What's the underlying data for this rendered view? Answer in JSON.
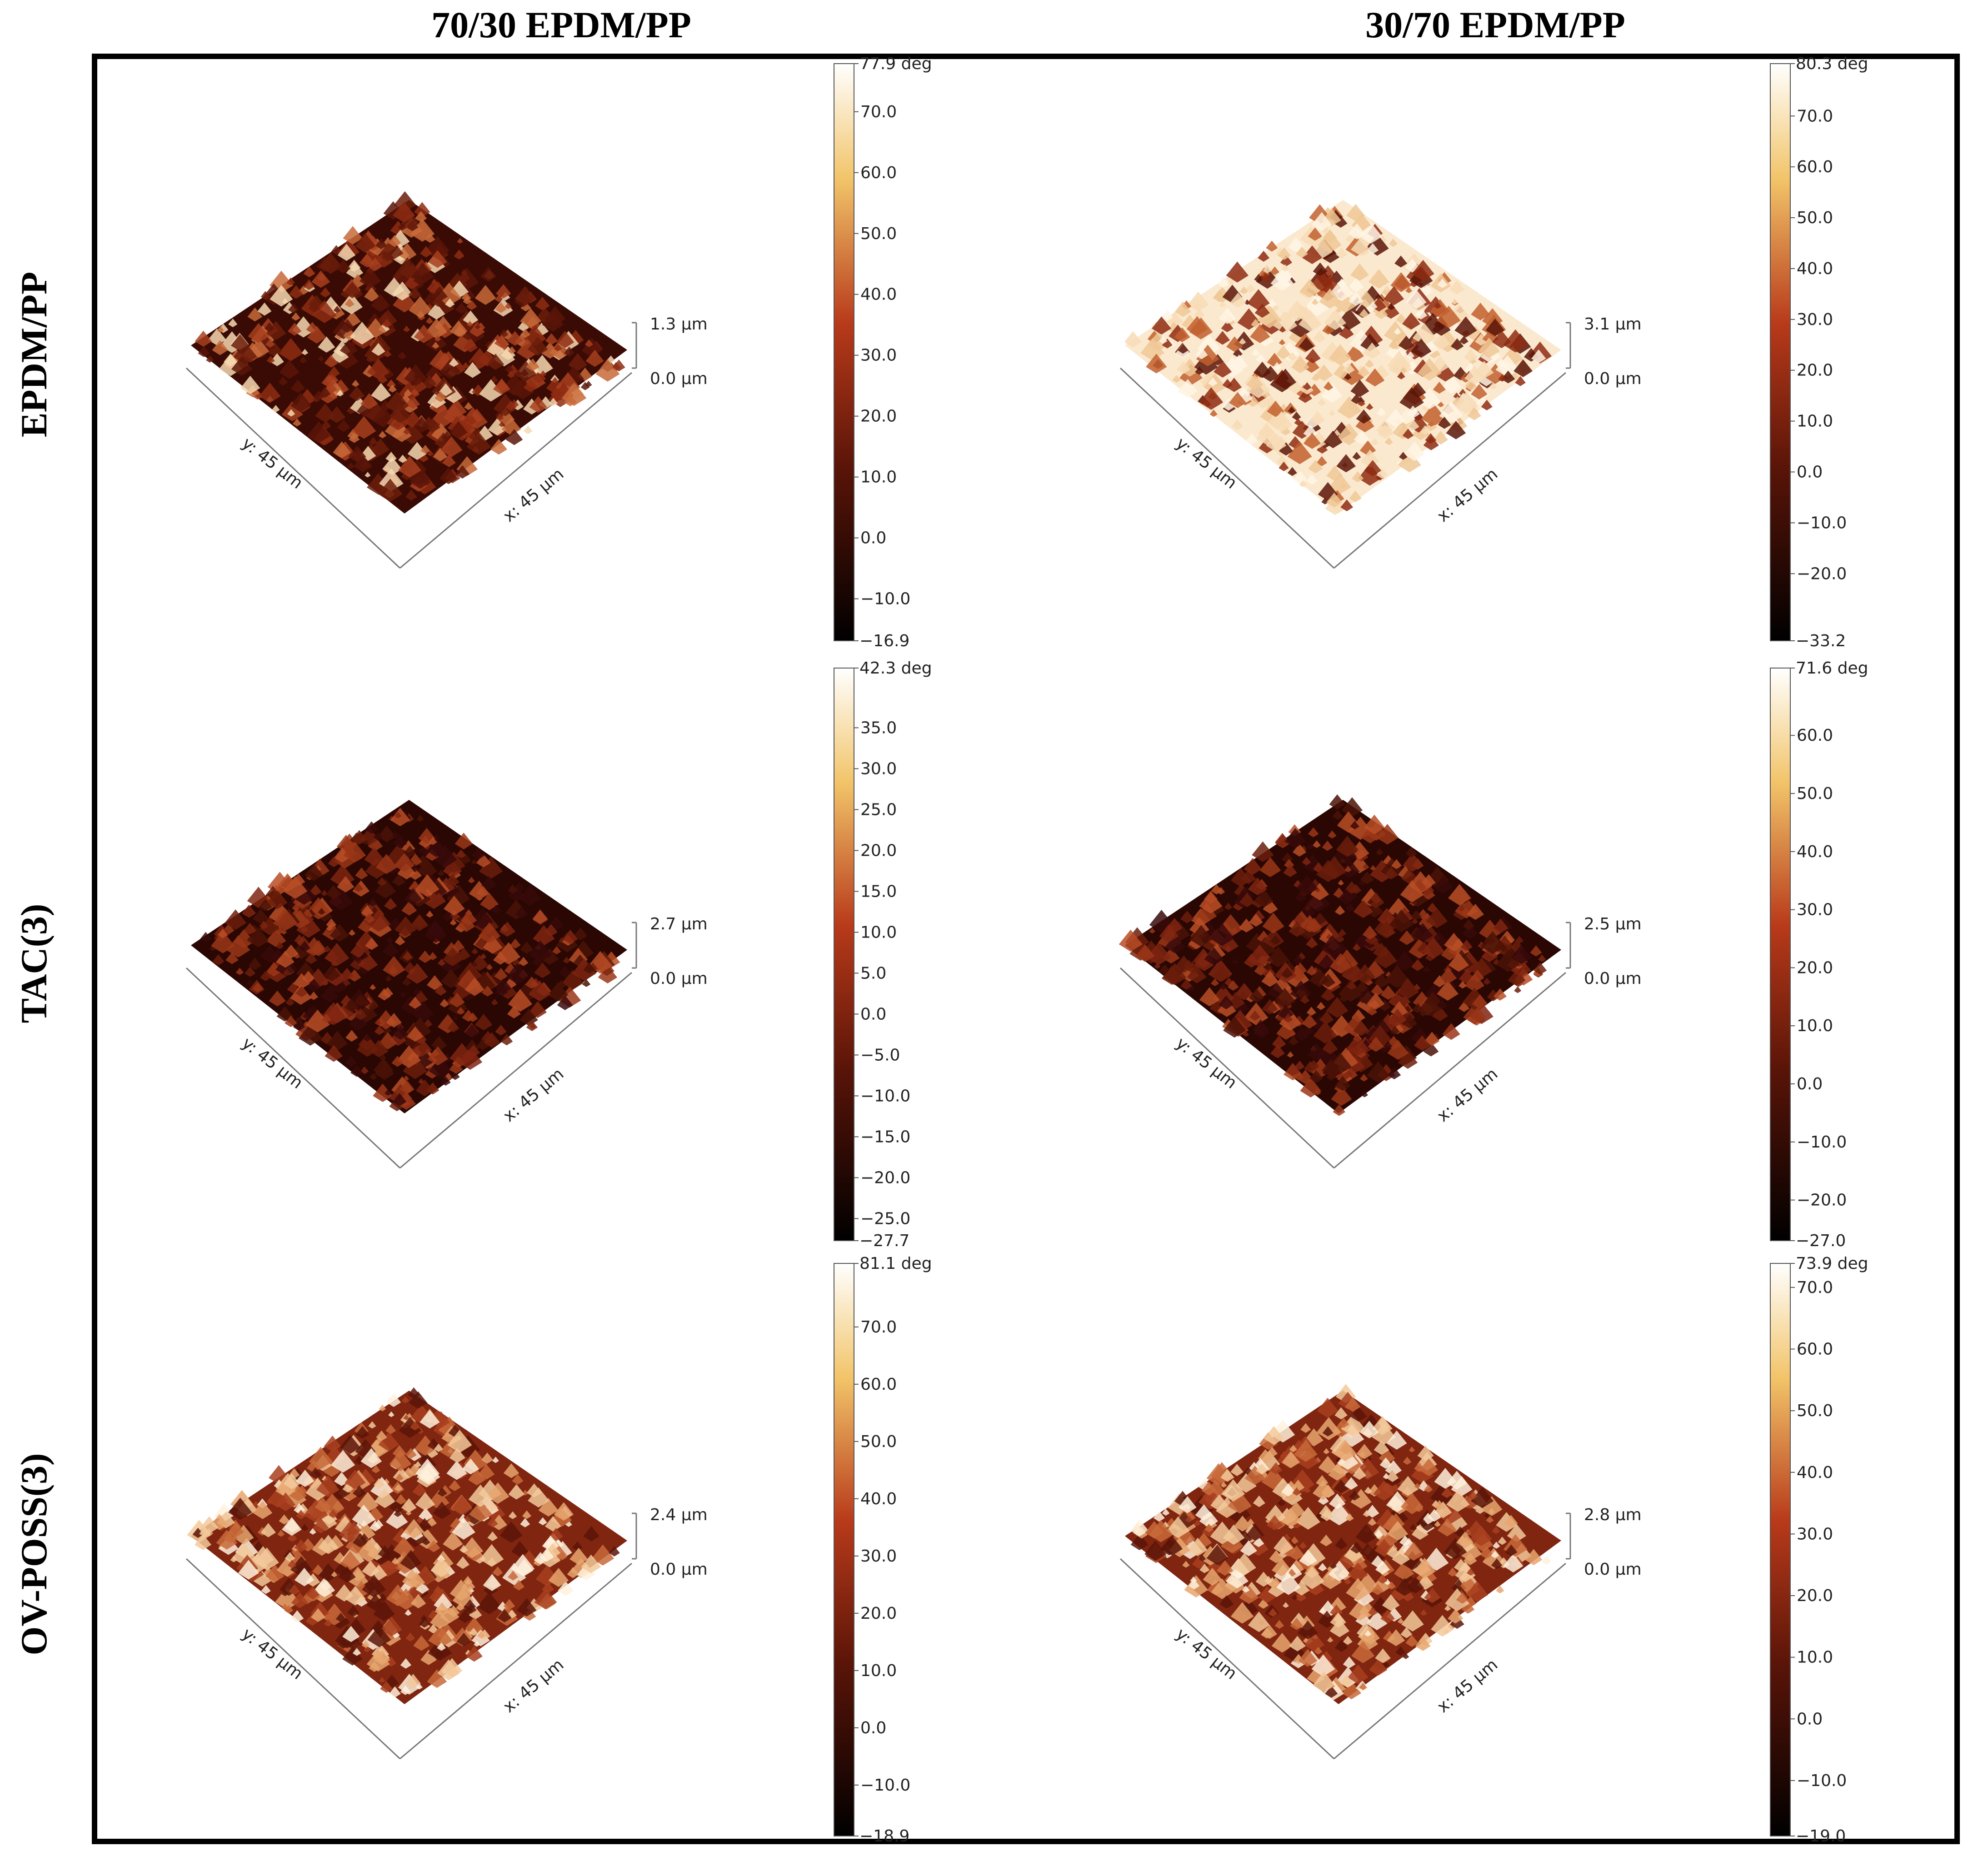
{
  "columns": [
    "70/30 EPDM/PP",
    "30/70 EPDM/PP"
  ],
  "rows": [
    "EPDM/PP",
    "TAC(3)",
    "OV-POSS(3)"
  ],
  "colors": {
    "dark": "#000000",
    "mid": "#b83a1a",
    "light": "#f2c469",
    "white": "#ffffff"
  },
  "panels": [
    {
      "id": "p11",
      "y_axis": "y: 45 µm",
      "x_axis": "x: 45 µm",
      "z_max": "1.3 µm",
      "z_min": "0.0 µm",
      "surface_tone": "dark",
      "colorbar": {
        "max_label": "77.9 deg",
        "min_label": "−16.9",
        "max": 77.9,
        "min": -16.9,
        "ticks": [
          {
            "v": 70,
            "t": "70.0"
          },
          {
            "v": 60,
            "t": "60.0"
          },
          {
            "v": 50,
            "t": "50.0"
          },
          {
            "v": 40,
            "t": "40.0"
          },
          {
            "v": 30,
            "t": "30.0"
          },
          {
            "v": 20,
            "t": "20.0"
          },
          {
            "v": 10,
            "t": "10.0"
          },
          {
            "v": 0,
            "t": "0.0"
          },
          {
            "v": -10,
            "t": "−10.0"
          }
        ]
      }
    },
    {
      "id": "p12",
      "y_axis": "y: 45 µm",
      "x_axis": "x: 45 µm",
      "z_max": "3.1 µm",
      "z_min": "0.0 µm",
      "surface_tone": "light",
      "colorbar": {
        "max_label": "80.3 deg",
        "min_label": "−33.2",
        "max": 80.3,
        "min": -33.2,
        "ticks": [
          {
            "v": 70,
            "t": "70.0"
          },
          {
            "v": 60,
            "t": "60.0"
          },
          {
            "v": 50,
            "t": "50.0"
          },
          {
            "v": 40,
            "t": "40.0"
          },
          {
            "v": 30,
            "t": "30.0"
          },
          {
            "v": 20,
            "t": "20.0"
          },
          {
            "v": 10,
            "t": "10.0"
          },
          {
            "v": 0,
            "t": "0.0"
          },
          {
            "v": -10,
            "t": "−10.0"
          },
          {
            "v": -20,
            "t": "−20.0"
          }
        ]
      }
    },
    {
      "id": "p21",
      "y_axis": "y: 45 µm",
      "x_axis": "x: 45 µm",
      "z_max": "2.7 µm",
      "z_min": "0.0 µm",
      "surface_tone": "darker",
      "colorbar": {
        "max_label": "42.3 deg",
        "min_label": "−27.7",
        "max": 42.3,
        "min": -27.7,
        "ticks": [
          {
            "v": 35,
            "t": "35.0"
          },
          {
            "v": 30,
            "t": "30.0"
          },
          {
            "v": 25,
            "t": "25.0"
          },
          {
            "v": 20,
            "t": "20.0"
          },
          {
            "v": 15,
            "t": "15.0"
          },
          {
            "v": 10,
            "t": "10.0"
          },
          {
            "v": 5,
            "t": "5.0"
          },
          {
            "v": 0,
            "t": "0.0"
          },
          {
            "v": -5,
            "t": "−5.0"
          },
          {
            "v": -10,
            "t": "−10.0"
          },
          {
            "v": -15,
            "t": "−15.0"
          },
          {
            "v": -20,
            "t": "−20.0"
          },
          {
            "v": -25,
            "t": "−25.0"
          }
        ]
      }
    },
    {
      "id": "p22",
      "y_axis": "y: 45 µm",
      "x_axis": "x: 45 µm",
      "z_max": "2.5 µm",
      "z_min": "0.0 µm",
      "surface_tone": "darker",
      "colorbar": {
        "max_label": "71.6 deg",
        "min_label": "−27.0",
        "max": 71.6,
        "min": -27.0,
        "ticks": [
          {
            "v": 60,
            "t": "60.0"
          },
          {
            "v": 50,
            "t": "50.0"
          },
          {
            "v": 40,
            "t": "40.0"
          },
          {
            "v": 30,
            "t": "30.0"
          },
          {
            "v": 20,
            "t": "20.0"
          },
          {
            "v": 10,
            "t": "10.0"
          },
          {
            "v": 0,
            "t": "0.0"
          },
          {
            "v": -10,
            "t": "−10.0"
          },
          {
            "v": -20,
            "t": "−20.0"
          }
        ]
      }
    },
    {
      "id": "p31",
      "y_axis": "y: 45 µm",
      "x_axis": "x: 45 µm",
      "z_max": "2.4 µm",
      "z_min": "0.0 µm",
      "surface_tone": "mixed",
      "colorbar": {
        "max_label": "81.1 deg",
        "min_label": "−18.9",
        "max": 81.1,
        "min": -18.9,
        "ticks": [
          {
            "v": 70,
            "t": "70.0"
          },
          {
            "v": 60,
            "t": "60.0"
          },
          {
            "v": 50,
            "t": "50.0"
          },
          {
            "v": 40,
            "t": "40.0"
          },
          {
            "v": 30,
            "t": "30.0"
          },
          {
            "v": 20,
            "t": "20.0"
          },
          {
            "v": 10,
            "t": "10.0"
          },
          {
            "v": 0,
            "t": "0.0"
          },
          {
            "v": -10,
            "t": "−10.0"
          }
        ]
      }
    },
    {
      "id": "p32",
      "y_axis": "y: 45 µm",
      "x_axis": "x: 45 µm",
      "z_max": "2.8 µm",
      "z_min": "0.0 µm",
      "surface_tone": "mixed",
      "colorbar": {
        "max_label": "73.9 deg",
        "min_label": "−19.0",
        "max": 73.9,
        "min": -19.0,
        "ticks": [
          {
            "v": 70,
            "t": "70.0"
          },
          {
            "v": 60,
            "t": "60.0"
          },
          {
            "v": 50,
            "t": "50.0"
          },
          {
            "v": 40,
            "t": "40.0"
          },
          {
            "v": 30,
            "t": "30.0"
          },
          {
            "v": 20,
            "t": "20.0"
          },
          {
            "v": 10,
            "t": "10.0"
          },
          {
            "v": 0,
            "t": "0.0"
          },
          {
            "v": -10,
            "t": "−10.0"
          }
        ]
      }
    }
  ]
}
